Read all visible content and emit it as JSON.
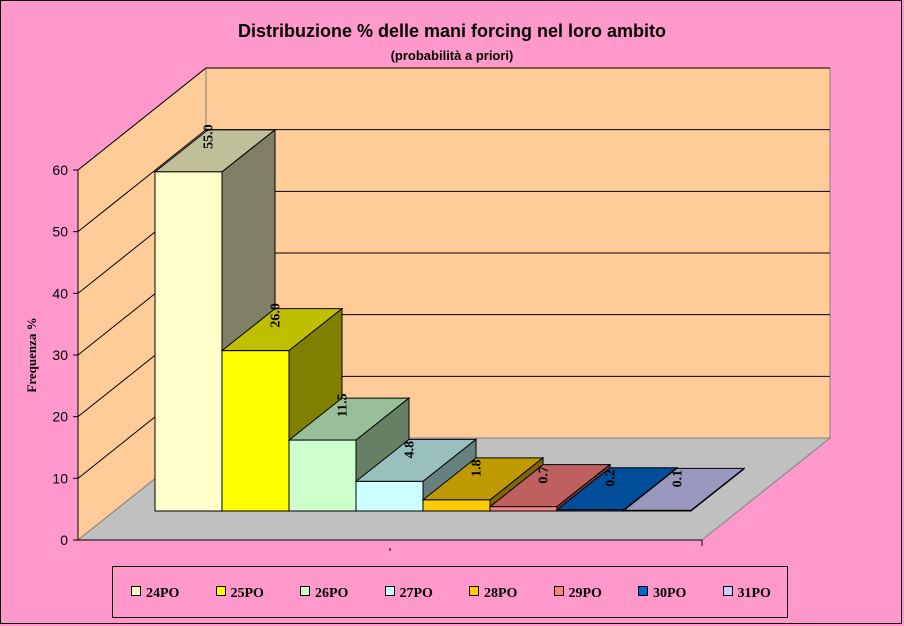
{
  "chart_data": {
    "type": "bar",
    "title": "Distribuzione % delle mani forcing nel loro ambito",
    "subtitle": "(probabilità a priori)",
    "ylabel": "Frequenza %",
    "ylim": [
      0,
      60
    ],
    "yticks": [
      0,
      10,
      20,
      30,
      40,
      50,
      60
    ],
    "grid": true,
    "legend_position": "bottom",
    "series": [
      {
        "name": "24PO",
        "values": [
          55.0
        ],
        "label": "55.0",
        "color": "#ffffcc"
      },
      {
        "name": "25PO",
        "values": [
          26.0
        ],
        "label": "26.0",
        "color": "#ffff00"
      },
      {
        "name": "26PO",
        "values": [
          11.5
        ],
        "label": "11.5",
        "color": "#ccffcc"
      },
      {
        "name": "27PO",
        "values": [
          4.8
        ],
        "label": "4.8",
        "color": "#ccffff"
      },
      {
        "name": "28PO",
        "values": [
          1.8
        ],
        "label": "1.8",
        "color": "#ffcc00"
      },
      {
        "name": "29PO",
        "values": [
          0.7
        ],
        "label": "0.7",
        "color": "#ff8080"
      },
      {
        "name": "30PO",
        "values": [
          0.2
        ],
        "label": "0.2",
        "color": "#0066cc"
      },
      {
        "name": "31PO",
        "values": [
          0.1
        ],
        "label": "0.1",
        "color": "#ccccff"
      }
    ],
    "colors": {
      "background": "#ff99cc",
      "back_wall": "#ffcc99",
      "side_wall": "#ffcc99",
      "floor": "#c0c0c0",
      "gridline": "#000000"
    }
  }
}
